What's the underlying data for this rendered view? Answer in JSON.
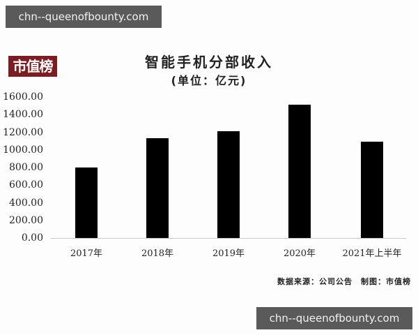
{
  "watermarks": {
    "top": "chn--queenofbounty.com",
    "bottom": "chn--queenofbounty.com"
  },
  "brand_logo": "市值榜",
  "header": {
    "title": "智能手机分部收入",
    "subtitle": "(单位：亿元)"
  },
  "footer": {
    "source": "数据来源：公司公告　制图：市值榜"
  },
  "colors": {
    "bar": "#000000",
    "brand": "#7a1e24",
    "watermark_bg": "#5a5a5a"
  },
  "chart_data": {
    "type": "bar",
    "title": "智能手机分部收入",
    "subtitle": "(单位：亿元)",
    "xlabel": "",
    "ylabel": "",
    "categories": [
      "2017年",
      "2018年",
      "2019年",
      "2020年",
      "2021年上半年"
    ],
    "values": [
      800,
      1130,
      1215,
      1510,
      1095
    ],
    "ylim": [
      0,
      1600
    ],
    "yticks": [
      "0.00",
      "200.00",
      "400.00",
      "600.00",
      "800.00",
      "1000.00",
      "1200.00",
      "1400.00",
      "1600.00"
    ],
    "grid": false,
    "legend": null,
    "annotations": [
      "数据来源：公司公告",
      "制图：市值榜"
    ]
  }
}
